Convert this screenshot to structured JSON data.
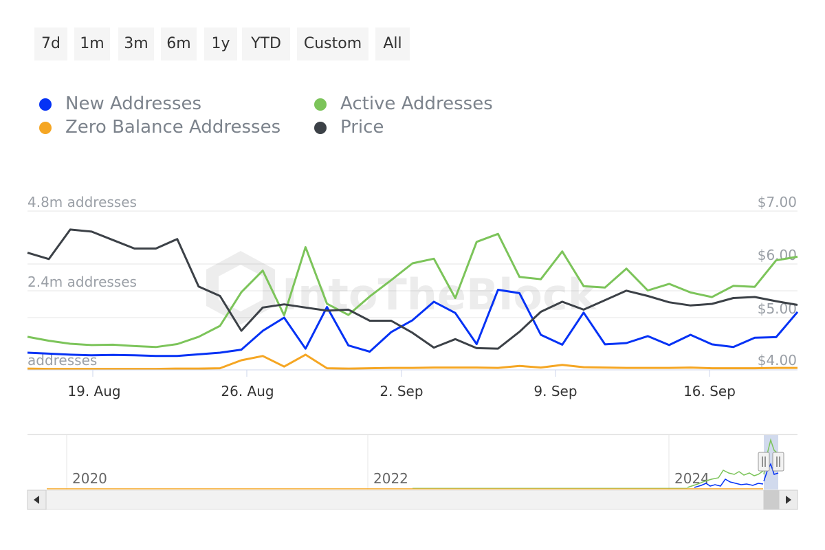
{
  "range_buttons": [
    "7d",
    "1m",
    "3m",
    "6m",
    "1y",
    "YTD",
    "Custom",
    "All"
  ],
  "legend": [
    {
      "label": "New Addresses",
      "color": "#0532f5"
    },
    {
      "label": "Active Addresses",
      "color": "#7cc45a"
    },
    {
      "label": "Zero Balance Addresses",
      "color": "#f5a623"
    },
    {
      "label": "Price",
      "color": "#3c4147"
    }
  ],
  "watermark": "IntoTheBlock",
  "chart_data": {
    "type": "line",
    "x_ticks": [
      "19. Aug",
      "26. Aug",
      "2. Sep",
      "9. Sep",
      "16. Sep"
    ],
    "x_range": [
      "Aug 16",
      "Sep 20"
    ],
    "left_axis": {
      "ticks": [
        "4.8m addresses",
        "2.4m addresses",
        "addresses"
      ],
      "range": [
        0,
        4800000
      ]
    },
    "right_axis": {
      "ticks": [
        "$7.00",
        "$6.00",
        "$5.00",
        "$4.00"
      ],
      "range": [
        3.8,
        7.0
      ]
    },
    "grid": true,
    "series": [
      {
        "name": "New Addresses",
        "axis": "left",
        "color": "#0532f5",
        "values": [
          520000,
          490000,
          460000,
          440000,
          450000,
          440000,
          420000,
          420000,
          470000,
          520000,
          610000,
          1180000,
          1580000,
          640000,
          1900000,
          740000,
          550000,
          1140000,
          1500000,
          2060000,
          1720000,
          780000,
          2420000,
          2320000,
          1060000,
          760000,
          1730000,
          770000,
          810000,
          1020000,
          750000,
          1060000,
          770000,
          690000,
          970000,
          990000,
          1750000
        ]
      },
      {
        "name": "Active Addresses",
        "axis": "left",
        "color": "#7cc45a",
        "values": [
          1000000,
          880000,
          790000,
          750000,
          760000,
          720000,
          690000,
          780000,
          1000000,
          1330000,
          2350000,
          3000000,
          1650000,
          3710000,
          2000000,
          1660000,
          2220000,
          2710000,
          3220000,
          3360000,
          2170000,
          3870000,
          4110000,
          2810000,
          2740000,
          3580000,
          2530000,
          2490000,
          3060000,
          2400000,
          2600000,
          2340000,
          2200000,
          2540000,
          2510000,
          3310000,
          3420000
        ]
      },
      {
        "name": "Zero Balance Addresses",
        "axis": "left",
        "color": "#f5a623",
        "values": [
          40000,
          30000,
          30000,
          30000,
          30000,
          30000,
          30000,
          40000,
          40000,
          50000,
          290000,
          420000,
          100000,
          460000,
          50000,
          40000,
          50000,
          60000,
          60000,
          70000,
          70000,
          70000,
          60000,
          120000,
          70000,
          150000,
          80000,
          70000,
          60000,
          60000,
          60000,
          70000,
          50000,
          50000,
          50000,
          60000,
          60000
        ]
      },
      {
        "name": "Price",
        "axis": "right",
        "color": "#3c4147",
        "values": [
          6.04,
          5.92,
          6.48,
          6.44,
          6.28,
          6.12,
          6.12,
          6.3,
          5.4,
          5.22,
          4.56,
          5.0,
          5.06,
          5.0,
          4.94,
          4.96,
          4.75,
          4.75,
          4.52,
          4.24,
          4.4,
          4.23,
          4.22,
          4.54,
          4.92,
          5.11,
          4.96,
          5.14,
          5.32,
          5.22,
          5.1,
          5.04,
          5.07,
          5.18,
          5.2,
          5.12,
          5.05
        ]
      }
    ]
  },
  "navigator": {
    "year_labels": [
      "2020",
      "2022",
      "2024"
    ],
    "scroll_left_icon": "triangle-left-icon",
    "scroll_right_icon": "triangle-right-icon",
    "handle_icon": "grip-lines-icon"
  }
}
